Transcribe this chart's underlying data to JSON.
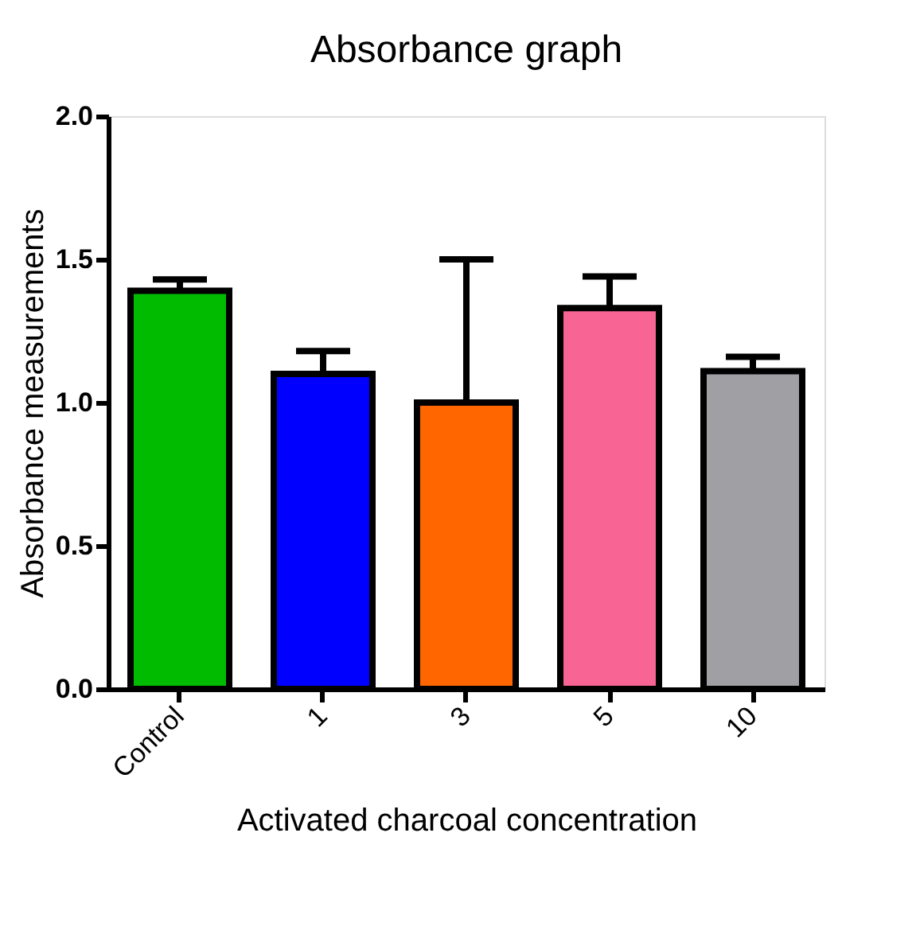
{
  "chart_data": {
    "type": "bar",
    "title": "Absorbance graph",
    "xlabel": "Activated charcoal concentration",
    "ylabel": "Absorbance measurements",
    "categories": [
      "Control",
      "1",
      "3",
      "5",
      "10"
    ],
    "values": [
      1.39,
      1.1,
      1.0,
      1.33,
      1.11
    ],
    "colors": [
      "#00bb00",
      "#0000ff",
      "#ff6600",
      "#f86494",
      "#a09fa4"
    ],
    "errors": [
      [
        1.39,
        1.43
      ],
      [
        1.1,
        1.18
      ],
      [
        1.0,
        1.5
      ],
      [
        1.33,
        1.44
      ],
      [
        1.11,
        1.16
      ]
    ],
    "ylim": [
      0,
      2.0
    ],
    "yticks": [
      {
        "value": 0,
        "label": "0.0"
      },
      {
        "value": 0.5,
        "label": "0.5"
      },
      {
        "value": 1.0,
        "label": "1.0"
      },
      {
        "value": 1.5,
        "label": "1.5"
      },
      {
        "value": 2.0,
        "label": "2.0"
      }
    ],
    "grid": false
  }
}
